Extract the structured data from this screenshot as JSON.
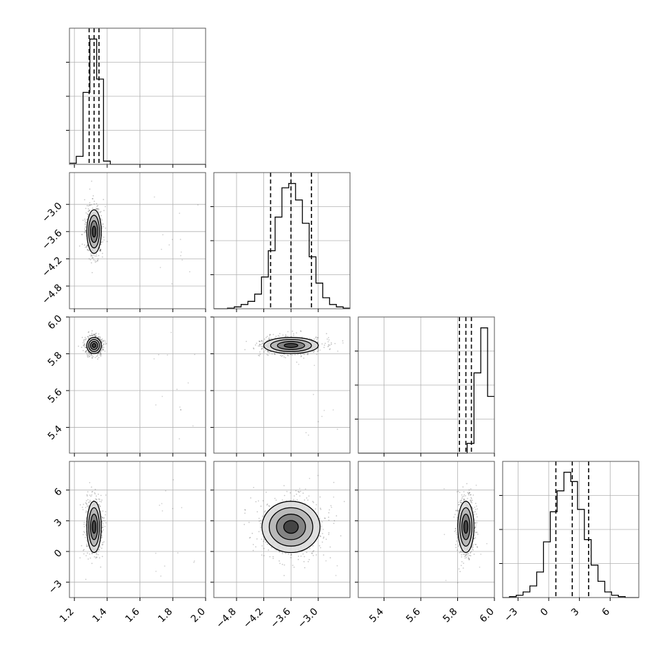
{
  "chart_data": {
    "type": "corner",
    "grid": true,
    "parameters": [
      {
        "index": 0,
        "range": [
          1.17,
          2.0
        ],
        "ticks": [
          "1.2",
          "1.4",
          "1.6",
          "1.8",
          "2.0"
        ],
        "quantiles": [
          1.29,
          1.32,
          1.35
        ]
      },
      {
        "index": 1,
        "range": [
          -5.3,
          -2.3
        ],
        "ticks": [
          "−4.8",
          "−4.2",
          "−3.6",
          "−3.0"
        ],
        "quantiles": [
          -4.05,
          -3.6,
          -3.15
        ]
      },
      {
        "index": 2,
        "range": [
          5.26,
          6.0
        ],
        "ticks": [
          "5.4",
          "5.6",
          "5.8",
          "6.0"
        ],
        "quantiles": [
          5.81,
          5.845,
          5.875
        ]
      },
      {
        "index": 3,
        "range": [
          -4.5,
          8.8
        ],
        "ticks": [
          "−3",
          "0",
          "3",
          "6"
        ],
        "quantiles": [
          0.7,
          2.3,
          3.9
        ]
      }
    ],
    "histograms": [
      {
        "param": 0,
        "bins_from": 1.17,
        "bin_width": 0.0415,
        "counts": [
          2,
          15,
          135,
          235,
          160,
          6,
          0,
          0,
          0,
          0,
          0,
          0,
          0,
          0,
          0,
          0,
          0,
          0,
          0,
          0
        ]
      },
      {
        "param": 1,
        "bins_from": -5.3,
        "bin_width": 0.15,
        "counts": [
          0,
          0,
          1,
          3,
          7,
          12,
          24,
          52,
          95,
          150,
          198,
          205,
          178,
          140,
          85,
          42,
          18,
          7,
          3,
          1
        ]
      },
      {
        "param": 2,
        "bins_from": 5.26,
        "bin_width": 0.037,
        "counts": [
          0,
          0,
          0,
          0,
          0,
          0,
          0,
          0,
          0,
          0,
          0,
          0,
          0,
          0,
          0,
          0,
          25,
          205,
          320,
          145
        ]
      },
      {
        "param": 3,
        "bins_from": -4.5,
        "bin_width": 0.665,
        "counts": [
          0,
          2,
          5,
          12,
          25,
          55,
          120,
          185,
          230,
          270,
          250,
          190,
          125,
          70,
          35,
          12,
          5,
          2,
          0,
          0
        ]
      }
    ],
    "pair_densities": [
      {
        "x": 0,
        "y": 1,
        "center": [
          1.32,
          -3.6
        ],
        "sigma": [
          0.022,
          0.24
        ]
      },
      {
        "x": 0,
        "y": 2,
        "center": [
          1.32,
          5.845
        ],
        "sigma": [
          0.022,
          0.022
        ]
      },
      {
        "x": 0,
        "y": 3,
        "center": [
          1.32,
          2.4
        ],
        "sigma": [
          0.022,
          1.25
        ]
      },
      {
        "x": 1,
        "y": 2,
        "center": [
          -3.6,
          5.845
        ],
        "sigma": [
          0.3,
          0.022
        ]
      },
      {
        "x": 1,
        "y": 3,
        "center": [
          -3.6,
          2.4
        ],
        "sigma": [
          0.32,
          1.25
        ]
      },
      {
        "x": 2,
        "y": 3,
        "center": [
          5.845,
          2.4
        ],
        "sigma": [
          0.022,
          1.25
        ]
      }
    ],
    "contour_levels_sigma": [
      0.5,
      1.0,
      1.5,
      2.0
    ]
  }
}
